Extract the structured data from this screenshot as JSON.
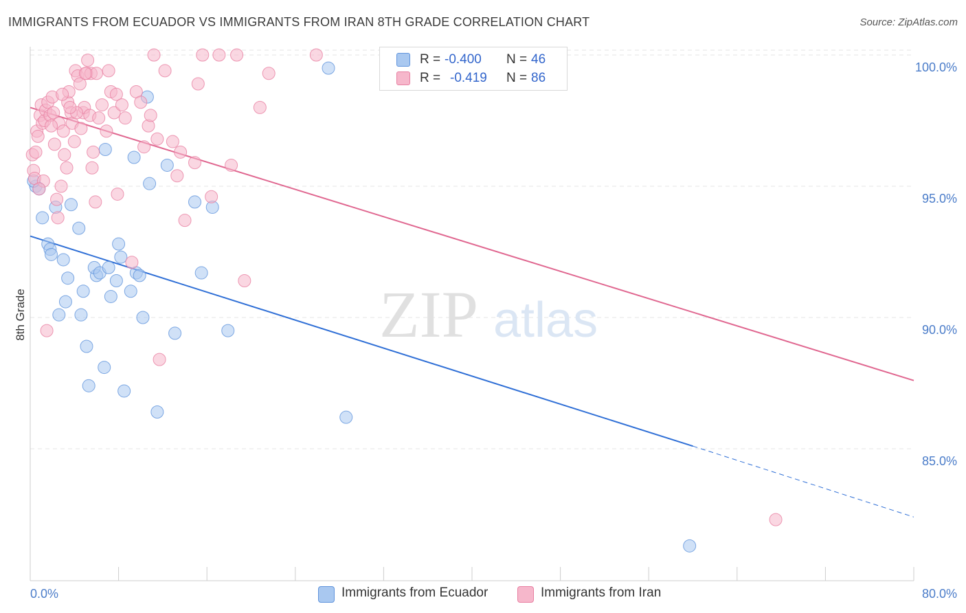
{
  "title": "IMMIGRANTS FROM ECUADOR VS IMMIGRANTS FROM IRAN 8TH GRADE CORRELATION CHART",
  "source": "Source: ZipAtlas.com",
  "watermark": {
    "zip": "ZIP",
    "atlas": "atlas"
  },
  "colors": {
    "blue_fill": "#a9c8f0",
    "blue_stroke": "#5f93dc",
    "blue_line": "#2f6fd6",
    "pink_fill": "#f6b7cb",
    "pink_stroke": "#e87fa1",
    "pink_line": "#e06790",
    "grid": "#e4e4e4",
    "axis_text": "#4a7cc9"
  },
  "legend": {
    "ecuador": {
      "r_label": "R =",
      "r_value": "-0.400",
      "n_label": "N =",
      "n_value": "46"
    },
    "iran": {
      "r_label": "R =",
      "r_value": "-0.419",
      "n_label": "N =",
      "n_value": "86"
    }
  },
  "bottom_legend": {
    "ecuador": "Immigrants from Ecuador",
    "iran": "Immigrants from Iran"
  },
  "chart_data": {
    "type": "scatter",
    "title": "IMMIGRANTS FROM ECUADOR VS IMMIGRANTS FROM IRAN 8TH GRADE CORRELATION CHART",
    "xlabel": "",
    "ylabel": "8th Grade",
    "xlim": [
      0,
      80
    ],
    "ylim": [
      80,
      101
    ],
    "x_tick_labels": [
      "0.0%",
      "80.0%"
    ],
    "y_ticks": [
      85,
      90,
      95,
      100
    ],
    "y_tick_labels": [
      "85.0%",
      "90.0%",
      "95.0%",
      "100.0%"
    ],
    "grid": true,
    "series": [
      {
        "name": "Immigrants from Ecuador",
        "color": "blue",
        "trend": {
          "x0": 0,
          "y0": 93.1,
          "x1": 60,
          "y1": 85.1,
          "dash_to_x": 80,
          "dash_to_y": 82.4
        },
        "points": [
          [
            0.5,
            95.0
          ],
          [
            0.8,
            94.9
          ],
          [
            1.1,
            93.8
          ],
          [
            1.6,
            92.8
          ],
          [
            1.8,
            92.6
          ],
          [
            1.9,
            92.4
          ],
          [
            2.3,
            94.2
          ],
          [
            3.0,
            92.2
          ],
          [
            3.4,
            91.5
          ],
          [
            3.2,
            90.6
          ],
          [
            2.6,
            90.1
          ],
          [
            4.4,
            93.4
          ],
          [
            4.6,
            90.1
          ],
          [
            4.8,
            91.0
          ],
          [
            5.1,
            88.9
          ],
          [
            5.3,
            87.4
          ],
          [
            6.0,
            91.6
          ],
          [
            5.8,
            91.9
          ],
          [
            6.3,
            91.7
          ],
          [
            6.8,
            96.4
          ],
          [
            6.7,
            88.1
          ],
          [
            7.1,
            91.9
          ],
          [
            7.3,
            90.8
          ],
          [
            7.8,
            91.4
          ],
          [
            8.0,
            92.8
          ],
          [
            8.2,
            92.3
          ],
          [
            8.5,
            87.2
          ],
          [
            9.1,
            91.0
          ],
          [
            9.4,
            96.1
          ],
          [
            9.6,
            91.7
          ],
          [
            9.9,
            91.6
          ],
          [
            10.2,
            90.0
          ],
          [
            10.8,
            95.1
          ],
          [
            11.5,
            86.4
          ],
          [
            12.4,
            95.8
          ],
          [
            13.1,
            89.4
          ],
          [
            14.9,
            94.4
          ],
          [
            15.5,
            91.7
          ],
          [
            16.5,
            94.2
          ],
          [
            17.9,
            89.5
          ],
          [
            10.6,
            98.4
          ],
          [
            27.0,
            99.5
          ],
          [
            28.6,
            86.2
          ],
          [
            59.7,
            81.3
          ],
          [
            3.7,
            94.3
          ],
          [
            0.3,
            95.2
          ]
        ]
      },
      {
        "name": "Immigrants from Iran",
        "color": "pink",
        "trend": {
          "x0": 0,
          "y0": 98.0,
          "x1": 80,
          "y1": 87.6
        },
        "points": [
          [
            0.2,
            96.2
          ],
          [
            0.3,
            95.6
          ],
          [
            0.4,
            95.3
          ],
          [
            0.5,
            96.3
          ],
          [
            0.6,
            97.1
          ],
          [
            0.7,
            96.9
          ],
          [
            0.9,
            97.7
          ],
          [
            1.0,
            98.1
          ],
          [
            1.1,
            97.4
          ],
          [
            1.2,
            95.2
          ],
          [
            1.3,
            97.5
          ],
          [
            1.4,
            97.9
          ],
          [
            1.5,
            89.5
          ],
          [
            1.6,
            98.2
          ],
          [
            1.8,
            97.7
          ],
          [
            2.0,
            98.4
          ],
          [
            2.1,
            97.8
          ],
          [
            2.2,
            96.6
          ],
          [
            2.4,
            94.5
          ],
          [
            2.5,
            93.8
          ],
          [
            2.6,
            97.4
          ],
          [
            2.8,
            95.0
          ],
          [
            3.0,
            97.1
          ],
          [
            3.1,
            96.2
          ],
          [
            3.3,
            95.7
          ],
          [
            3.4,
            98.2
          ],
          [
            3.5,
            98.6
          ],
          [
            3.7,
            97.8
          ],
          [
            3.8,
            97.4
          ],
          [
            4.0,
            96.7
          ],
          [
            4.1,
            99.4
          ],
          [
            4.3,
            99.2
          ],
          [
            4.5,
            98.9
          ],
          [
            4.6,
            97.2
          ],
          [
            4.8,
            97.8
          ],
          [
            4.9,
            98.0
          ],
          [
            5.1,
            99.3
          ],
          [
            5.2,
            99.8
          ],
          [
            5.4,
            97.7
          ],
          [
            5.5,
            99.3
          ],
          [
            5.6,
            95.7
          ],
          [
            5.7,
            96.3
          ],
          [
            5.9,
            94.4
          ],
          [
            6.2,
            97.6
          ],
          [
            6.5,
            98.1
          ],
          [
            6.9,
            97.1
          ],
          [
            7.1,
            99.4
          ],
          [
            7.3,
            98.6
          ],
          [
            7.6,
            97.8
          ],
          [
            7.8,
            98.5
          ],
          [
            7.9,
            94.7
          ],
          [
            8.3,
            98.1
          ],
          [
            8.6,
            97.6
          ],
          [
            9.2,
            92.1
          ],
          [
            9.6,
            98.6
          ],
          [
            10.0,
            98.2
          ],
          [
            10.3,
            96.5
          ],
          [
            10.7,
            97.3
          ],
          [
            10.9,
            97.7
          ],
          [
            11.2,
            100.0
          ],
          [
            11.5,
            96.8
          ],
          [
            11.7,
            88.4
          ],
          [
            12.2,
            99.4
          ],
          [
            12.9,
            96.7
          ],
          [
            13.3,
            95.4
          ],
          [
            13.6,
            96.3
          ],
          [
            14.0,
            93.7
          ],
          [
            14.9,
            95.9
          ],
          [
            15.2,
            98.9
          ],
          [
            15.6,
            100.0
          ],
          [
            16.4,
            94.6
          ],
          [
            17.1,
            100.0
          ],
          [
            18.2,
            95.8
          ],
          [
            18.7,
            100.0
          ],
          [
            19.4,
            91.4
          ],
          [
            20.8,
            98.0
          ],
          [
            21.6,
            99.3
          ],
          [
            25.9,
            100.0
          ],
          [
            67.5,
            82.3
          ],
          [
            6.0,
            99.3
          ],
          [
            2.9,
            98.5
          ],
          [
            1.9,
            97.3
          ],
          [
            0.8,
            94.9
          ],
          [
            4.2,
            97.8
          ],
          [
            3.6,
            98.0
          ],
          [
            5.0,
            99.3
          ]
        ]
      }
    ]
  }
}
